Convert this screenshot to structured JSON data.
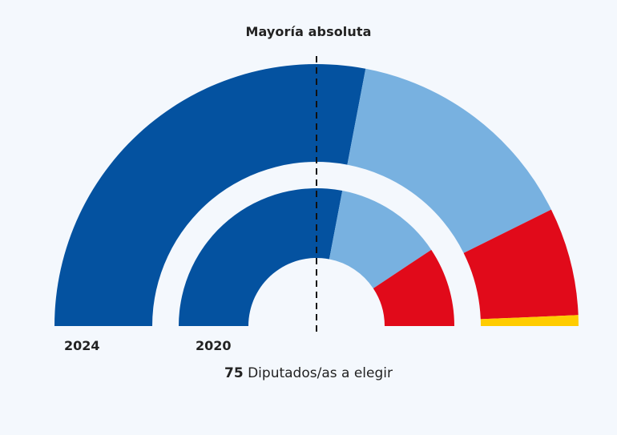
{
  "chart_data": {
    "type": "parliament-semicircle",
    "title": "Mayoría absoluta",
    "total_seats": 75,
    "majority_line_label": "Mayoría absoluta",
    "rings": [
      {
        "label": "2024",
        "position": "outer",
        "series": [
          {
            "color": "#0452a0",
            "seats": 42
          },
          {
            "color": "#78b1e0",
            "seats": 22
          },
          {
            "color": "#e10a1a",
            "seats": 10
          },
          {
            "color": "#ffcc00",
            "seats": 1
          }
        ]
      },
      {
        "label": "2020",
        "position": "inner",
        "series": [
          {
            "color": "#0452a0",
            "seats": 42
          },
          {
            "color": "#78b1e0",
            "seats": 19
          },
          {
            "color": "#e10a1a",
            "seats": 14
          }
        ]
      }
    ]
  },
  "labels": {
    "title": "Mayoría absoluta",
    "year_outer": "2024",
    "year_inner": "2020",
    "seats_number": "75",
    "seats_text": " Diputados/as a elegir"
  }
}
